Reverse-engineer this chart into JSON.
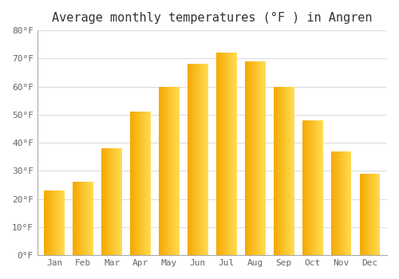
{
  "title": "Average monthly temperatures (°F ) in Angren",
  "months": [
    "Jan",
    "Feb",
    "Mar",
    "Apr",
    "May",
    "Jun",
    "Jul",
    "Aug",
    "Sep",
    "Oct",
    "Nov",
    "Dec"
  ],
  "values": [
    23,
    26,
    38,
    51,
    60,
    68,
    72,
    69,
    60,
    48,
    37,
    29
  ],
  "bar_color_left": "#F5A800",
  "bar_color_right": "#FFD85A",
  "ylim": [
    0,
    80
  ],
  "yticks": [
    0,
    10,
    20,
    30,
    40,
    50,
    60,
    70,
    80
  ],
  "ytick_labels": [
    "0°F",
    "10°F",
    "20°F",
    "30°F",
    "40°F",
    "50°F",
    "60°F",
    "70°F",
    "80°F"
  ],
  "background_color": "#FFFFFF",
  "grid_color": "#DDDDDD",
  "title_fontsize": 11,
  "tick_fontsize": 8,
  "font_family": "monospace"
}
